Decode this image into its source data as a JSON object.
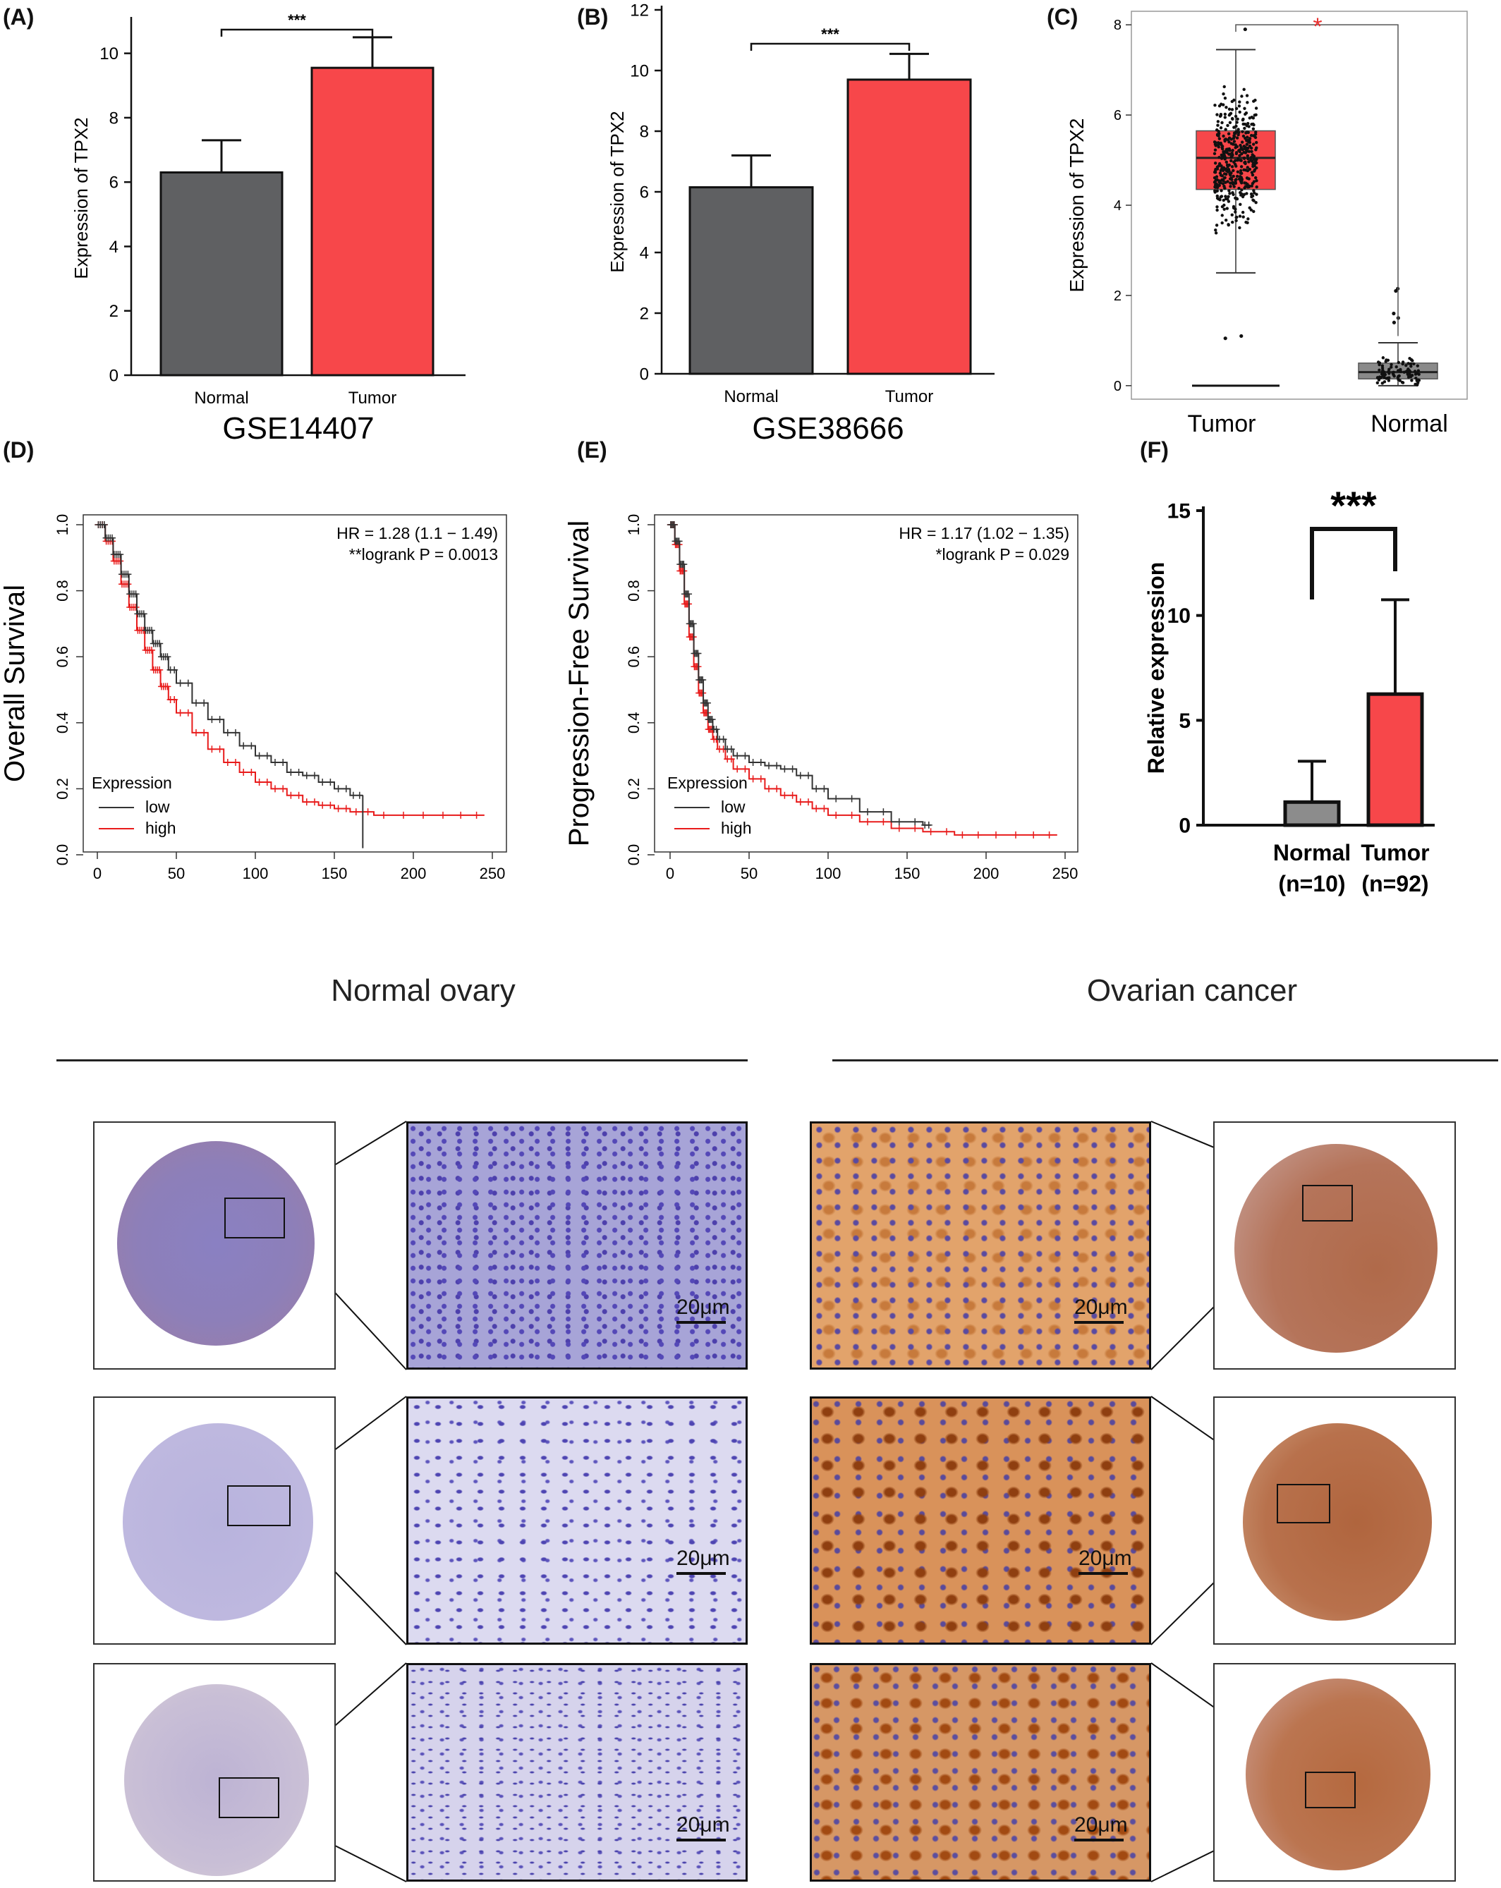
{
  "panels": {
    "A": "(A)",
    "B": "(B)",
    "C": "(C)",
    "D": "(D)",
    "E": "(E)",
    "F": "(F)"
  },
  "chart_data": [
    {
      "id": "A",
      "type": "bar",
      "categories": [
        "Normal",
        "Tumor"
      ],
      "values": [
        6.3,
        9.55
      ],
      "errors": [
        1.0,
        0.95
      ],
      "colors": [
        "#5f6062",
        "#f7474a"
      ],
      "ylabel": "Expression of TPX2",
      "title": "GSE14407",
      "ylim": [
        0,
        11
      ],
      "yticks": [
        "0",
        "2",
        "4",
        "6",
        "8",
        "10"
      ],
      "significance": "***"
    },
    {
      "id": "B",
      "type": "bar",
      "categories": [
        "Normal",
        "Tumor"
      ],
      "values": [
        6.15,
        9.7
      ],
      "errors": [
        1.05,
        0.85
      ],
      "colors": [
        "#5f6062",
        "#f7474a"
      ],
      "ylabel": "Expression of TPX2",
      "title": "GSE38666",
      "ylim": [
        0,
        12
      ],
      "yticks": [
        "0",
        "2",
        "4",
        "6",
        "8",
        "10",
        "12"
      ],
      "significance": "***"
    },
    {
      "id": "C",
      "type": "box",
      "categories": [
        "Tumor",
        "Normal"
      ],
      "ylabel": "Expression of TPX2",
      "ylim": [
        -0.3,
        8.3
      ],
      "yticks": [
        "0",
        "2",
        "4",
        "6",
        "8"
      ],
      "boxes": [
        {
          "name": "Tumor",
          "q1": 4.35,
          "median": 5.05,
          "q3": 5.65,
          "whisker_low": 2.5,
          "whisker_high": 7.45,
          "color": "#f7474a",
          "n_points": 430,
          "spread": 1.1,
          "outliers": [
            1.05,
            1.1,
            7.9
          ]
        },
        {
          "name": "Normal",
          "q1": 0.15,
          "median": 0.3,
          "q3": 0.5,
          "whisker_low": 0.0,
          "whisker_high": 0.95,
          "color": "#8a8a8a",
          "n_points": 90,
          "spread": 0.25,
          "outliers": [
            1.4,
            1.5,
            1.6,
            2.1,
            2.15
          ]
        }
      ],
      "significance": "*",
      "significance_color": "#e8302f"
    },
    {
      "id": "D",
      "type": "line",
      "ylabel": "Overall Survival",
      "xlim": [
        0,
        250
      ],
      "ylim": [
        0,
        1
      ],
      "xticks": [
        "0",
        "50",
        "100",
        "150",
        "200",
        "250"
      ],
      "yticks": [
        "0.0",
        "0.2",
        "0.4",
        "0.6",
        "0.8",
        "1.0"
      ],
      "annotation": [
        "HR = 1.28 (1.1 − 1.49)",
        "**logrank P = 0.0013"
      ],
      "legend_title": "Expression",
      "series": [
        {
          "name": "low",
          "color": "#333333",
          "x": [
            0,
            5,
            10,
            15,
            20,
            25,
            30,
            35,
            40,
            45,
            50,
            60,
            70,
            80,
            90,
            100,
            110,
            120,
            130,
            140,
            150,
            160,
            168
          ],
          "y": [
            1.0,
            0.96,
            0.91,
            0.85,
            0.79,
            0.73,
            0.68,
            0.64,
            0.6,
            0.56,
            0.52,
            0.46,
            0.41,
            0.37,
            0.33,
            0.3,
            0.28,
            0.25,
            0.24,
            0.22,
            0.2,
            0.18,
            0.18
          ]
        },
        {
          "name": "high",
          "color": "#e81b1b",
          "x": [
            0,
            5,
            10,
            15,
            20,
            25,
            30,
            35,
            40,
            45,
            50,
            60,
            70,
            80,
            90,
            100,
            110,
            120,
            130,
            140,
            150,
            160,
            175,
            200,
            225,
            245
          ],
          "y": [
            1.0,
            0.95,
            0.89,
            0.82,
            0.75,
            0.68,
            0.62,
            0.56,
            0.51,
            0.47,
            0.43,
            0.37,
            0.32,
            0.28,
            0.25,
            0.22,
            0.2,
            0.18,
            0.16,
            0.15,
            0.14,
            0.13,
            0.12,
            0.12,
            0.12,
            0.12
          ]
        }
      ]
    },
    {
      "id": "E",
      "type": "line",
      "ylabel": "Progression-Free Survival",
      "xlim": [
        0,
        250
      ],
      "ylim": [
        0,
        1
      ],
      "xticks": [
        "0",
        "50",
        "100",
        "150",
        "200",
        "250"
      ],
      "yticks": [
        "0.0",
        "0.2",
        "0.4",
        "0.6",
        "0.8",
        "1.0"
      ],
      "annotation": [
        "HR = 1.17 (1.02 − 1.35)",
        "*logrank P = 0.029"
      ],
      "legend_title": "Expression",
      "series": [
        {
          "name": "low",
          "color": "#333333",
          "x": [
            0,
            3,
            6,
            9,
            12,
            15,
            18,
            21,
            24,
            27,
            30,
            35,
            40,
            50,
            60,
            70,
            80,
            90,
            100,
            120,
            140,
            160,
            165
          ],
          "y": [
            1.0,
            0.95,
            0.88,
            0.79,
            0.7,
            0.61,
            0.53,
            0.46,
            0.41,
            0.38,
            0.35,
            0.32,
            0.3,
            0.28,
            0.27,
            0.26,
            0.24,
            0.2,
            0.17,
            0.13,
            0.1,
            0.09,
            0.09
          ]
        },
        {
          "name": "high",
          "color": "#e81b1b",
          "x": [
            0,
            3,
            6,
            9,
            12,
            15,
            18,
            21,
            24,
            27,
            30,
            35,
            40,
            50,
            60,
            70,
            80,
            90,
            100,
            120,
            140,
            160,
            180,
            200,
            225,
            245
          ],
          "y": [
            1.0,
            0.94,
            0.86,
            0.76,
            0.66,
            0.57,
            0.49,
            0.43,
            0.38,
            0.35,
            0.32,
            0.29,
            0.26,
            0.23,
            0.2,
            0.18,
            0.16,
            0.14,
            0.12,
            0.1,
            0.08,
            0.07,
            0.06,
            0.06,
            0.06,
            0.06
          ]
        }
      ]
    },
    {
      "id": "F",
      "type": "bar",
      "categories": [
        "Normal",
        "Tumor"
      ],
      "category_sublabels": [
        "(n=10)",
        "(n=92)"
      ],
      "values": [
        1.1,
        6.25
      ],
      "errors": [
        1.95,
        4.5
      ],
      "colors": [
        "#8c8c8c",
        "#f7474a"
      ],
      "ylabel": "Relative expression",
      "ylim": [
        0,
        15
      ],
      "yticks": [
        "0",
        "5",
        "10",
        "15"
      ],
      "significance": "***"
    }
  ],
  "ihc": {
    "normal_title": "Normal ovary",
    "cancer_title": "Ovarian cancer",
    "scale_label": "20μm"
  }
}
